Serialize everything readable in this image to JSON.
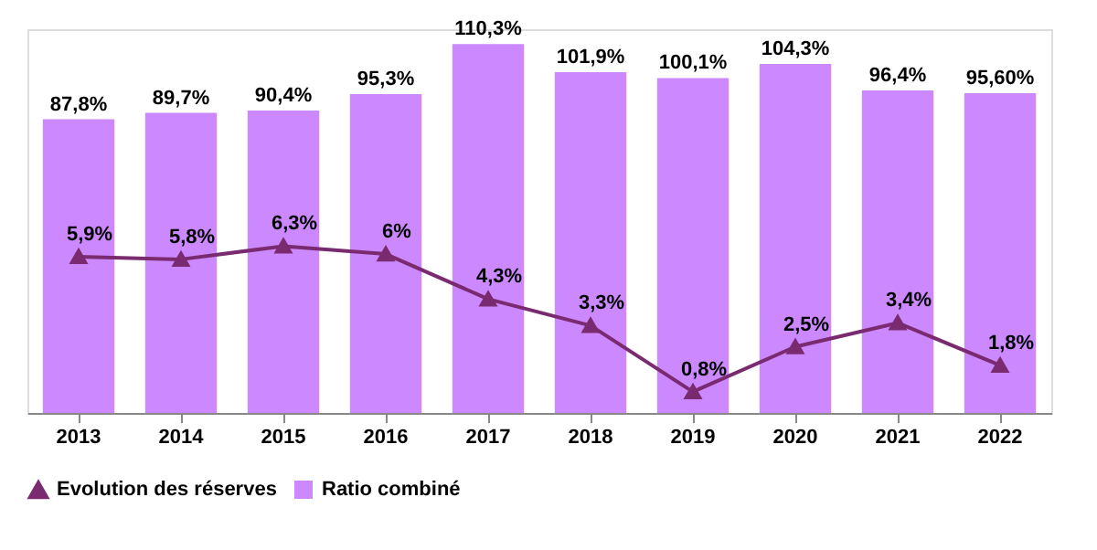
{
  "chart_data": {
    "type": "bar",
    "categories": [
      "2013",
      "2014",
      "2015",
      "2016",
      "2017",
      "2018",
      "2019",
      "2020",
      "2021",
      "2022"
    ],
    "series": [
      {
        "name": "Ratio combiné",
        "color": "#cc88ff",
        "values": [
          87.8,
          89.7,
          90.4,
          95.3,
          110.3,
          101.9,
          100.1,
          104.3,
          96.4,
          95.6
        ],
        "value_labels": [
          "87,8%",
          "89,7%",
          "90,4%",
          "95,3%",
          "110,3%",
          "101,9%",
          "100,1%",
          "104,3%",
          "96,4%",
          "95,60%"
        ]
      },
      {
        "name": "Evolution des réserves",
        "type": "line",
        "axis": "y2",
        "color": "#7a2b6f",
        "values": [
          5.9,
          5.8,
          6.3,
          6,
          4.3,
          3.3,
          0.8,
          2.5,
          3.4,
          1.8
        ],
        "value_labels": [
          "5,9%",
          "5,8%",
          "6,3%",
          "6%",
          "4,3%",
          "3,3%",
          "0,8%",
          "2,5%",
          "3,4%",
          "1,8%"
        ]
      }
    ],
    "marker": "triangle",
    "line_style": "solid",
    "legend": "bottom",
    "tick_labels": "x",
    "grid": false
  }
}
